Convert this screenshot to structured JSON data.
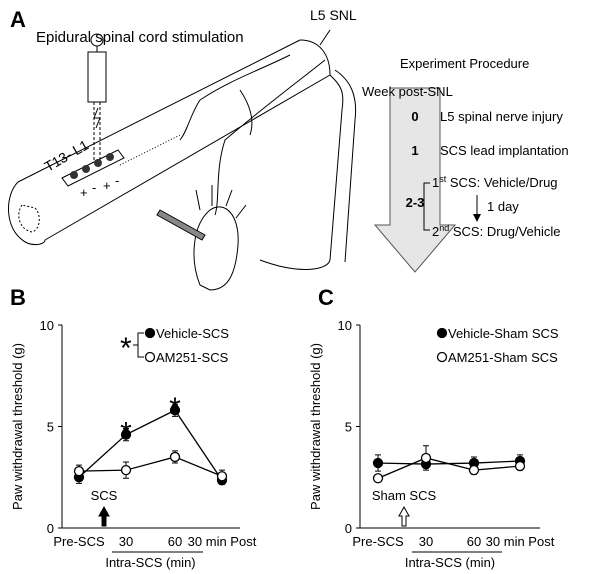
{
  "panel_a": {
    "letter": "A",
    "title": "Epidural spinal cord stimulation",
    "segment": "T13- L1",
    "lesion": "L5 SNL",
    "electrodes": [
      "+",
      "-",
      "+",
      "-"
    ],
    "procedure": {
      "title": "Experiment Procedure",
      "axis": "Week post-SNL",
      "steps": [
        {
          "week": "0",
          "text": "L5 spinal nerve injury"
        },
        {
          "week": "1",
          "text": "SCS lead implantation"
        },
        {
          "week": "2-3",
          "first": [
            "1",
            "st",
            " SCS:  Vehicle/Drug"
          ],
          "interval": "1 day",
          "second": [
            "2",
            "nd",
            " SCS:  Drug/Vehicle"
          ]
        }
      ]
    }
  },
  "chart_data": [
    {
      "type": "line",
      "letter": "B",
      "ylabel": "Paw withdrawal threshold (g)",
      "categories": [
        "Pre-SCS",
        "30",
        "60",
        "30 min Post"
      ],
      "x_group": {
        "label": "Intra-SCS (min)",
        "from": 1,
        "to": 2
      },
      "ylim": [
        0,
        10
      ],
      "yticks": [
        0,
        5,
        10
      ],
      "series": [
        {
          "name": "Vehicle-SCS",
          "color": "#000000",
          "marker": "filled",
          "values": [
            2.5,
            4.6,
            5.8,
            2.35
          ],
          "errors": [
            0.3,
            0.3,
            0.3,
            0.2
          ]
        },
        {
          "name": "AM251-SCS",
          "color": "#000000",
          "marker": "open",
          "values": [
            2.8,
            2.85,
            3.5,
            2.55
          ],
          "errors": [
            0.3,
            0.4,
            0.3,
            0.3
          ]
        }
      ],
      "significance": [
        null,
        "*",
        "*",
        null
      ],
      "legend_note": "*",
      "stimulus": {
        "label": "SCS",
        "category": 1,
        "arrow": "filled"
      }
    },
    {
      "type": "line",
      "letter": "C",
      "ylabel": "Paw withdrawal threshold (g)",
      "categories": [
        "Pre-SCS",
        "30",
        "60",
        "30 min Post"
      ],
      "x_group": {
        "label": "Intra-SCS (min)",
        "from": 1,
        "to": 2
      },
      "ylim": [
        0,
        10
      ],
      "yticks": [
        0,
        5,
        10
      ],
      "series": [
        {
          "name": "Vehicle-Sham SCS",
          "color": "#000000",
          "marker": "filled",
          "values": [
            3.2,
            3.15,
            3.2,
            3.3
          ],
          "errors": [
            0.4,
            0.2,
            0.3,
            0.3
          ]
        },
        {
          "name": "AM251-Sham SCS",
          "color": "#000000",
          "marker": "open",
          "values": [
            2.45,
            3.45,
            2.85,
            3.05
          ],
          "errors": [
            0.15,
            0.6,
            0.2,
            0.2
          ]
        }
      ],
      "significance": [
        null,
        null,
        null,
        null
      ],
      "stimulus": {
        "label": "Sham SCS",
        "category": 1,
        "arrow": "open"
      }
    }
  ]
}
